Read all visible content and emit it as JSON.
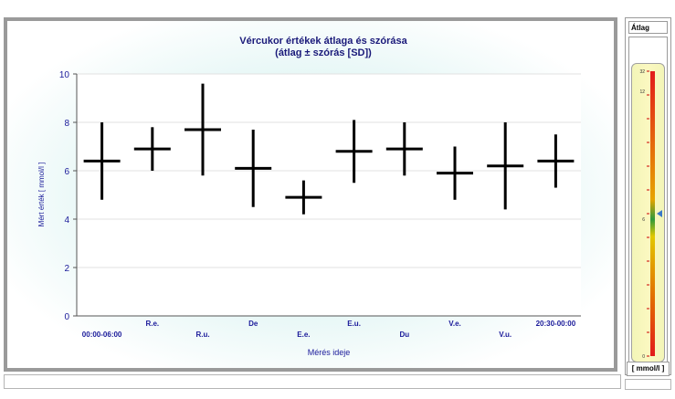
{
  "chart_data": {
    "type": "error-bar",
    "title": "Vércukor értékek átlaga és szórása",
    "subtitle": "(átlag ± szórás [SD])",
    "xlabel": "Mérés ideje",
    "ylabel": "Mért érték [ mmol/l ]",
    "ylim": [
      0,
      10
    ],
    "yticks": [
      "0",
      "2",
      "4",
      "6",
      "8",
      "10"
    ],
    "grid": true,
    "categories": [
      "00:00-06:00",
      "R.e.",
      "R.u.",
      "De",
      "E.e.",
      "E.u.",
      "Du",
      "V.e.",
      "V.u.",
      "20:30-00:00"
    ],
    "mean": [
      6.4,
      6.9,
      7.7,
      6.1,
      4.9,
      6.8,
      6.9,
      5.9,
      6.2,
      6.4
    ],
    "low": [
      4.8,
      6.0,
      5.8,
      4.5,
      4.2,
      5.5,
      5.8,
      4.8,
      4.4,
      5.3
    ],
    "high": [
      8.0,
      7.8,
      9.6,
      7.7,
      5.6,
      8.1,
      8.0,
      7.0,
      8.0,
      7.5
    ]
  },
  "side_panel": {
    "title": "Átlag",
    "unit": "[ mmol/l ]",
    "gauge_ticks": [
      "32",
      "12",
      "6",
      "0"
    ],
    "gauge_value": 6.2
  },
  "colors": {
    "mark": "#000000",
    "axis_text": "#1a1a9a",
    "gauge_top": "#e21b1b",
    "gauge_mid": "#2f9a3a",
    "marker": "#3a78c8"
  }
}
